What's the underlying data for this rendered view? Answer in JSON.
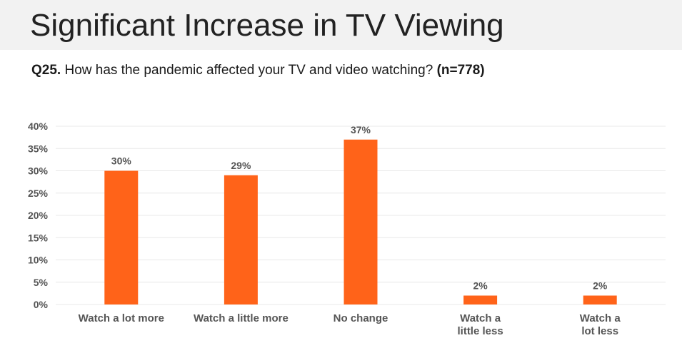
{
  "header": {
    "title": "Significant Increase in TV Viewing",
    "question_number": "Q25.",
    "question_text": "How has the pandemic affected your TV and video watching?",
    "sample": "(n=778)"
  },
  "colors": {
    "bar": "#ff6319",
    "grid": "#e8e8e8",
    "band": "#f2f2f2"
  },
  "chart_data": {
    "type": "bar",
    "categories": [
      "Watch a lot more",
      "Watch a little more",
      "No change",
      "Watch a little less",
      "Watch a lot less"
    ],
    "category_lines": [
      [
        "Watch a lot more"
      ],
      [
        "Watch a little more"
      ],
      [
        "No change"
      ],
      [
        "Watch a",
        "little less"
      ],
      [
        "Watch a",
        "lot less"
      ]
    ],
    "values": [
      30,
      29,
      37,
      2,
      2
    ],
    "data_labels": [
      "30%",
      "29%",
      "37%",
      "2%",
      "2%"
    ],
    "yticks": [
      0,
      5,
      10,
      15,
      20,
      25,
      30,
      35,
      40
    ],
    "ytick_labels": [
      "0%",
      "5%",
      "10%",
      "15%",
      "20%",
      "25%",
      "30%",
      "35%",
      "40%"
    ],
    "ylim": [
      0,
      40
    ],
    "grid": true,
    "legend": "none"
  }
}
